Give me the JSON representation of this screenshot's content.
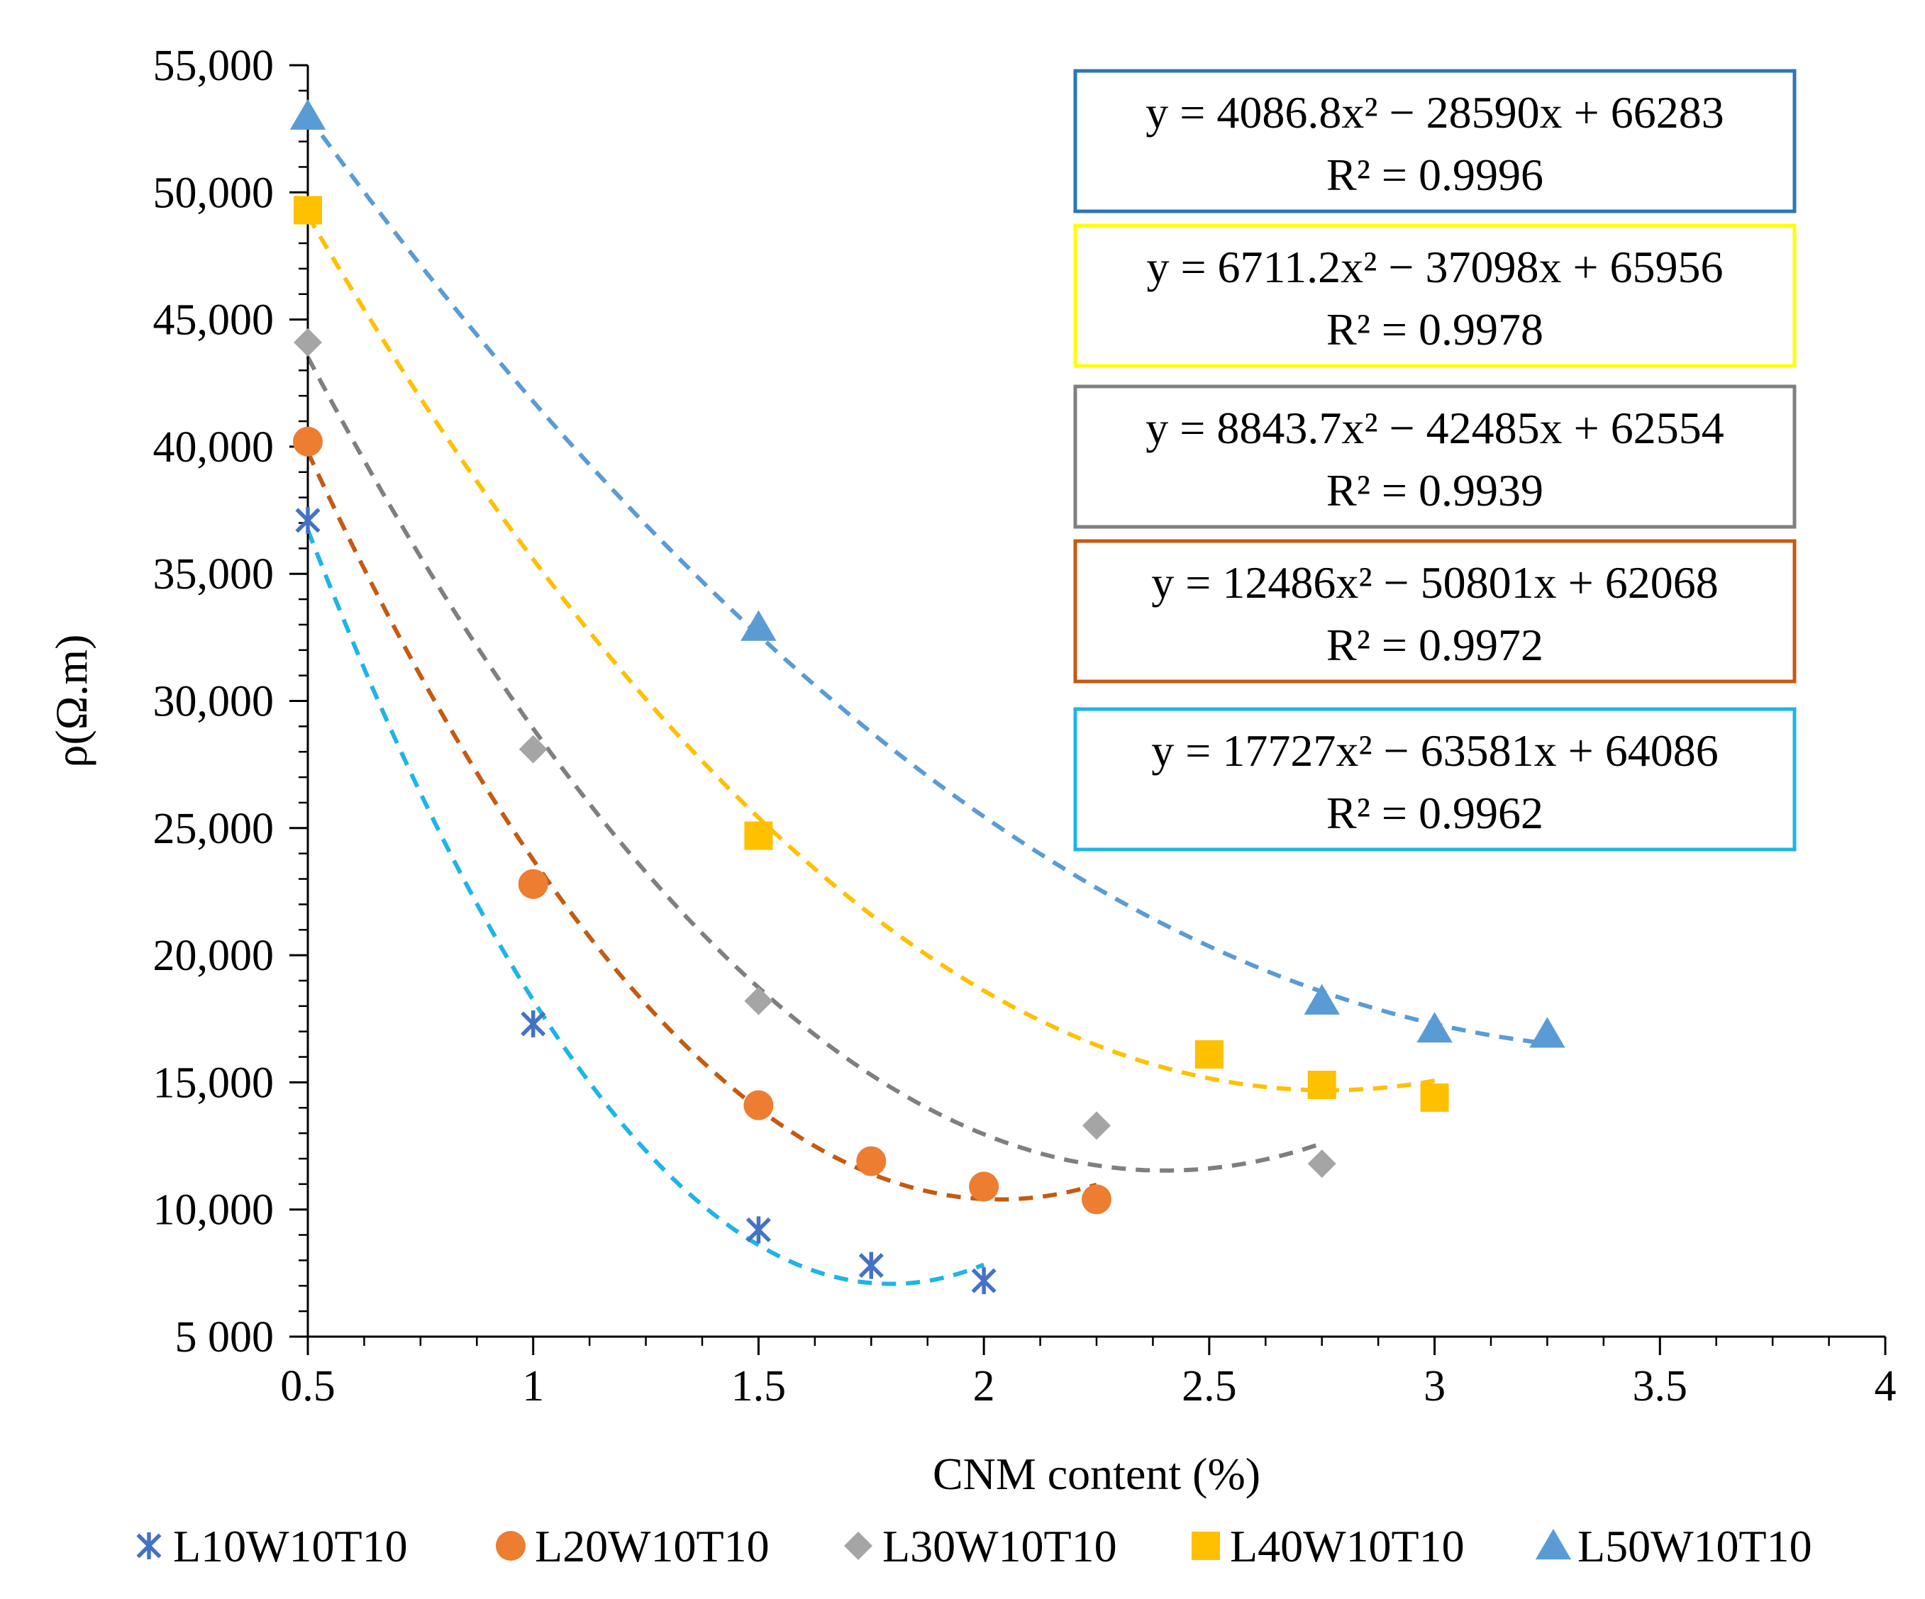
{
  "chart_data": {
    "type": "scatter",
    "xlabel": "CNM content (%)",
    "ylabel": "ρ(Ω.m)",
    "xlim": [
      0.5,
      4
    ],
    "ylim": [
      5000,
      55000
    ],
    "x_ticks": [
      "0.5",
      "1",
      "1.5",
      "2",
      "2.5",
      "3",
      "3.5",
      "4"
    ],
    "y_ticks": [
      "5 000",
      "10,000",
      "15,000",
      "20,000",
      "25,000",
      "30,000",
      "35,000",
      "40,000",
      "45,000",
      "50,000",
      "55,000"
    ],
    "legend_position": "bottom",
    "series": [
      {
        "name": "L10W10T10",
        "marker": "asterisk",
        "color": "#4472C4",
        "trend_color": "#1EB4E8",
        "x": [
          0.5,
          1,
          1.5,
          1.75,
          2
        ],
        "y": [
          37100,
          17300,
          9200,
          7800,
          7200
        ],
        "trendline": {
          "a": 17727,
          "b": -63581,
          "c": 64086,
          "x_range": [
            0.5,
            2
          ]
        },
        "equation": "y = 17727x² − 63581x + 64086",
        "r2": "R² = 0.9962",
        "box_color": "#1EB4E8"
      },
      {
        "name": "L20W10T10",
        "marker": "circle",
        "color": "#ED7D31",
        "trend_color": "#C55A11",
        "x": [
          0.5,
          1,
          1.5,
          1.75,
          2,
          2.25
        ],
        "y": [
          40200,
          22800,
          14100,
          11900,
          10900,
          10400
        ],
        "trendline": {
          "a": 12486,
          "b": -50801,
          "c": 62068,
          "x_range": [
            0.5,
            2.25
          ]
        },
        "equation": "y = 12486x² − 50801x + 62068",
        "r2": "R² = 0.9972",
        "box_color": "#C55A11"
      },
      {
        "name": "L30W10T10",
        "marker": "diamond",
        "color": "#A5A5A5",
        "trend_color": "#7F7F7F",
        "x": [
          0.5,
          1,
          1.5,
          2.25,
          2.75
        ],
        "y": [
          44100,
          28100,
          18200,
          13300,
          11800
        ],
        "trendline": {
          "a": 8843.7,
          "b": -42485,
          "c": 62554,
          "x_range": [
            0.5,
            2.75
          ]
        },
        "equation": "y = 8843.7x² − 42485x + 62554",
        "r2": "R² = 0.9939",
        "box_color": "#808080"
      },
      {
        "name": "L40W10T10",
        "marker": "square",
        "color": "#FFC000",
        "trend_color": "#FFC000",
        "x": [
          0.5,
          1.5,
          2.5,
          2.75,
          3
        ],
        "y": [
          49300,
          24700,
          16100,
          14900,
          14400
        ],
        "trendline": {
          "a": 6711.2,
          "b": -37098,
          "c": 65956,
          "x_range": [
            0.5,
            3
          ]
        },
        "equation": "y = 6711.2x² − 37098x + 65956",
        "r2": "R² = 0.9978",
        "box_color": "#FFFF00"
      },
      {
        "name": "L50W10T10",
        "marker": "triangle",
        "color": "#5B9BD5",
        "trend_color": "#5B9BD5",
        "x": [
          0.5,
          1.5,
          2.75,
          3,
          3.25
        ],
        "y": [
          53000,
          32900,
          18200,
          17100,
          16900
        ],
        "trendline": {
          "a": 4086.8,
          "b": -28590,
          "c": 66283,
          "x_range": [
            0.5,
            3.25
          ]
        },
        "equation": "y = 4086.8x² − 28590x + 66283",
        "r2": "R² = 0.9996",
        "box_color": "#2E75B6"
      }
    ]
  }
}
